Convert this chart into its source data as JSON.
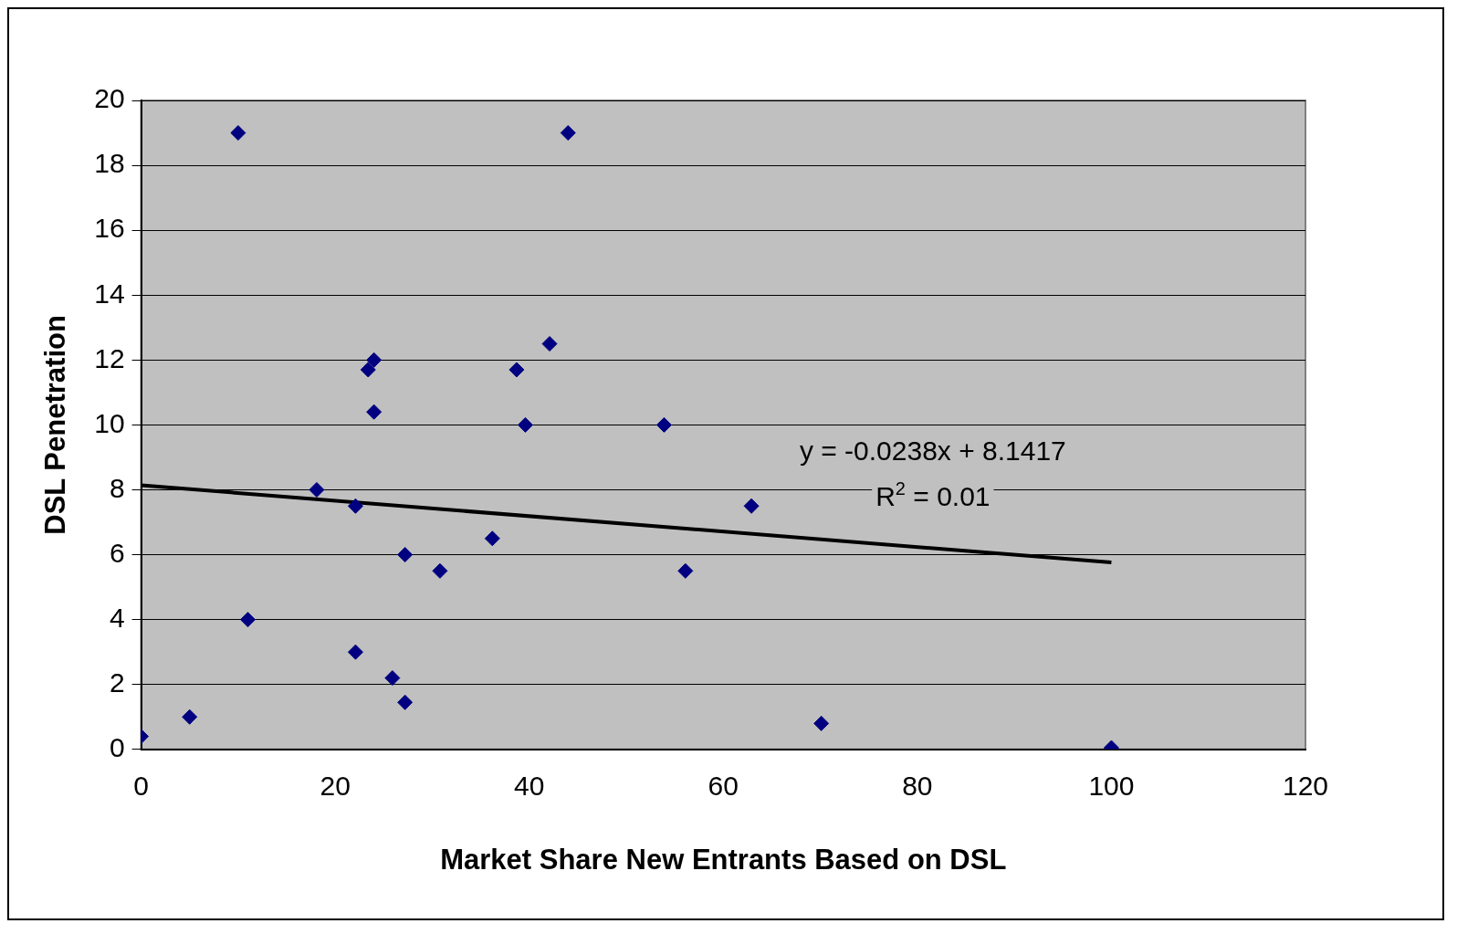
{
  "chart_data": {
    "type": "scatter",
    "xlabel": "Market Share New Entrants Based on DSL",
    "ylabel": "DSL Penetration",
    "xlim": [
      0,
      120
    ],
    "xticks": [
      0,
      20,
      40,
      60,
      80,
      100,
      120
    ],
    "ylim": [
      0,
      20
    ],
    "yticks": [
      0,
      2,
      4,
      6,
      8,
      10,
      12,
      14,
      16,
      18,
      20
    ],
    "grid": "y",
    "legend": false,
    "annotations": [
      "y = -0.0238x + 8.1417",
      "R$^{2}$ = 0.01"
    ],
    "series": [
      {
        "marker": "diamond",
        "color": "#000080",
        "x": [
          0,
          5,
          10,
          11,
          18.1,
          22.1,
          22.1,
          23.4,
          24,
          24,
          25.9,
          27.2,
          27.2,
          30.8,
          36.2,
          38.7,
          39.6,
          42.1,
          44,
          53.9,
          56.1,
          62.9,
          70.1,
          100
        ],
        "values": [
          0.4,
          1,
          19,
          4,
          8,
          7.5,
          3,
          11.7,
          12,
          10.4,
          2.2,
          6,
          1.45,
          5.5,
          6.5,
          11.7,
          10,
          12.5,
          19,
          10,
          5.5,
          7.5,
          0.8,
          0.05
        ]
      },
      {
        "type": "line",
        "color": "#000000",
        "x": [
          0,
          100
        ],
        "values": [
          8.14,
          5.76
        ]
      }
    ]
  }
}
